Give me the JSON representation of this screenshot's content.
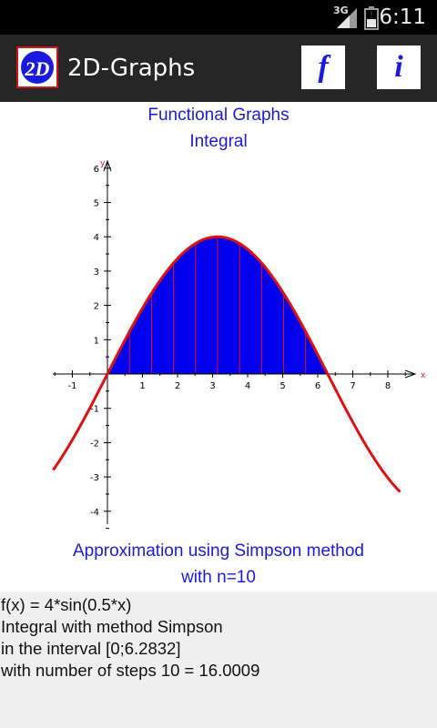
{
  "status": {
    "network": "3G",
    "time": "6:11"
  },
  "app": {
    "title": "2D-Graphs"
  },
  "toolbar": {
    "function_label": "f",
    "info_label": "i"
  },
  "heading": {
    "line1": "Functional Graphs",
    "line2": "Integral"
  },
  "caption": {
    "line1": "Approximation using Simpson method",
    "line2": "with n=10"
  },
  "result": {
    "line1": "f(x) = 4*sin(0.5*x)",
    "line2": "Integral with method Simpson",
    "line3": "in the interval [0;6.2832]",
    "line4": "with number of steps 10 = 16.0009"
  },
  "colors": {
    "accent": "#1a1adf",
    "curve": "#e01010",
    "fill": "#0000ee",
    "actionbar": "#262626"
  },
  "chart_data": {
    "type": "line",
    "function": "4*sin(0.5*x)",
    "xlabel": "x",
    "ylabel": "y",
    "xlim": [
      -1.5,
      8.8
    ],
    "ylim": [
      -4.4,
      6.3
    ],
    "x_ticks": [
      -1,
      1,
      2,
      3,
      4,
      5,
      6,
      7,
      8
    ],
    "y_ticks": [
      -4,
      -3,
      -2,
      -1,
      1,
      2,
      3,
      4,
      5,
      6
    ],
    "shaded_interval": [
      0,
      6.2832
    ],
    "steps": 10,
    "curve_x_range": [
      -1.55,
      8.35
    ]
  }
}
